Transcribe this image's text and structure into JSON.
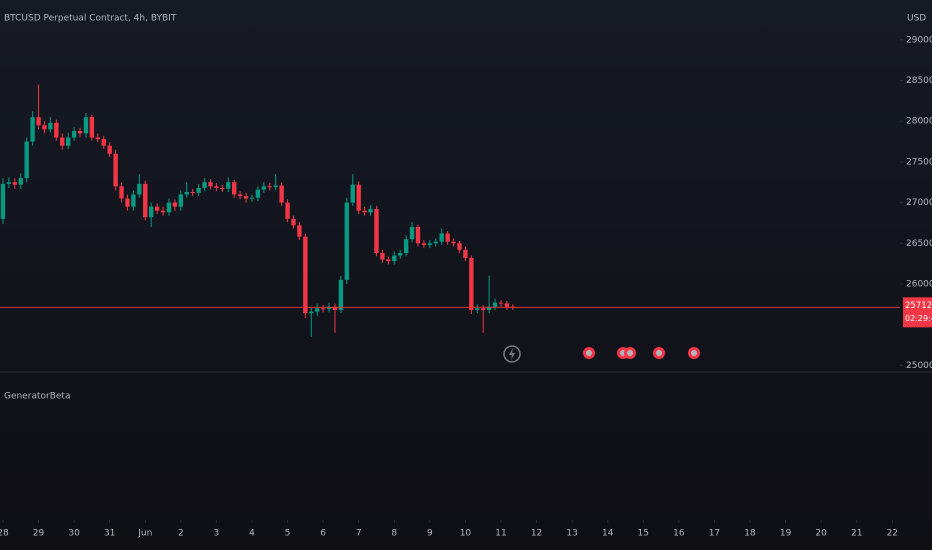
{
  "chart_data": {
    "type": "candlestick",
    "title": "BTCUSD Perpetual Contract, 4h, BYBIT",
    "currency": "USD",
    "indicator": "GeneratorBeta",
    "up_color": "#089981",
    "down_color": "#f23645",
    "last_price": 25712.5,
    "countdown": "02:29:46",
    "x": [
      0,
      1,
      2,
      3,
      4,
      5,
      6,
      7,
      8,
      9,
      10,
      11,
      12,
      13,
      14,
      15,
      16,
      17,
      18,
      19,
      20,
      21,
      22,
      23,
      24,
      25,
      26,
      27,
      28,
      29,
      30,
      31,
      32,
      33,
      34,
      35,
      36,
      37,
      38,
      39,
      40,
      41,
      42,
      43,
      44,
      45,
      46,
      47,
      48,
      49,
      50,
      51,
      52,
      53,
      54,
      55,
      56,
      57,
      58,
      59,
      60,
      61,
      62,
      63,
      64,
      65,
      66,
      67,
      68,
      69,
      70,
      71,
      72,
      73,
      74,
      75,
      76,
      77,
      78,
      79,
      80,
      81,
      82,
      83,
      84,
      85,
      86
    ],
    "open": [
      26800,
      27230,
      27250,
      27220,
      27300,
      27750,
      28050,
      27950,
      27900,
      27980,
      27800,
      27700,
      27800,
      27880,
      27850,
      28050,
      27800,
      27780,
      27700,
      27600,
      27200,
      27050,
      26950,
      27100,
      27230,
      26820,
      26950,
      26900,
      26880,
      27000,
      26950,
      27100,
      27130,
      27120,
      27180,
      27250,
      27200,
      27180,
      27170,
      27250,
      27100,
      27080,
      27050,
      27060,
      27160,
      27200,
      27190,
      27210,
      27000,
      26800,
      26720,
      26580,
      25640,
      25660,
      25700,
      25690,
      25720,
      25680,
      26050,
      27000,
      27220,
      26900,
      26880,
      26920,
      26380,
      26300,
      26280,
      26350,
      26380,
      26550,
      26700,
      26500,
      26480,
      26500,
      26520,
      26620,
      26520,
      26500,
      26420,
      26320,
      25680,
      25700,
      25680,
      25720,
      25770,
      25760,
      25720
    ],
    "high": [
      27300,
      27310,
      27300,
      27360,
      27800,
      28120,
      28450,
      28000,
      28050,
      28020,
      27850,
      27860,
      27930,
      27920,
      28100,
      28080,
      27850,
      27820,
      27740,
      27650,
      27250,
      27100,
      27150,
      27350,
      27270,
      27000,
      26990,
      26950,
      27050,
      27040,
      27150,
      27250,
      27170,
      27230,
      27300,
      27290,
      27240,
      27220,
      27310,
      27280,
      27140,
      27120,
      27100,
      27200,
      27250,
      27240,
      27350,
      27250,
      27040,
      26840,
      26760,
      26620,
      25720,
      25760,
      25740,
      25770,
      25760,
      26100,
      27060,
      27350,
      27260,
      26950,
      26970,
      26960,
      26420,
      26340,
      26400,
      26420,
      26600,
      26760,
      26730,
      26540,
      26540,
      26560,
      26680,
      26650,
      26560,
      26530,
      26460,
      26350,
      25750,
      25740,
      26100,
      25820,
      25800,
      25790,
      25750
    ],
    "low": [
      26740,
      27180,
      27170,
      27170,
      27250,
      27700,
      27900,
      27850,
      27860,
      27760,
      27650,
      27660,
      27760,
      27800,
      27800,
      27760,
      27740,
      27660,
      27560,
      27150,
      27000,
      26900,
      26900,
      27060,
      26780,
      26700,
      26860,
      26840,
      26840,
      26900,
      26900,
      27060,
      27080,
      27080,
      27140,
      27160,
      27140,
      27130,
      27130,
      27060,
      27040,
      27000,
      27010,
      27020,
      27120,
      27150,
      27150,
      26960,
      26760,
      26680,
      26540,
      25580,
      25350,
      25610,
      25650,
      25650,
      25400,
      25640,
      26000,
      26960,
      26860,
      26840,
      26840,
      26340,
      26260,
      26240,
      26240,
      26310,
      26340,
      26510,
      26460,
      26440,
      26440,
      26460,
      26480,
      26480,
      26460,
      26380,
      26280,
      25630,
      25640,
      25400,
      25640,
      25680,
      25720,
      25680,
      25680
    ],
    "close": [
      27230,
      27250,
      27220,
      27300,
      27750,
      28050,
      27950,
      27900,
      27980,
      27800,
      27700,
      27800,
      27880,
      27850,
      28050,
      27800,
      27780,
      27700,
      27600,
      27200,
      27050,
      26950,
      27100,
      27230,
      26820,
      26950,
      26900,
      26880,
      27000,
      26950,
      27100,
      27130,
      27120,
      27180,
      27250,
      27200,
      27180,
      27170,
      27250,
      27100,
      27080,
      27050,
      27060,
      27160,
      27200,
      27190,
      27210,
      27000,
      26800,
      26720,
      26580,
      25640,
      25660,
      25700,
      25690,
      25720,
      25680,
      26050,
      27000,
      27220,
      26900,
      26880,
      26920,
      26380,
      26300,
      26280,
      26350,
      26380,
      26550,
      26700,
      26500,
      26480,
      26500,
      26520,
      26620,
      26520,
      26500,
      26420,
      26320,
      25680,
      25700,
      25680,
      25720,
      25770,
      25760,
      25720,
      25712.5
    ],
    "ylim": [
      24930,
      29490
    ],
    "yticks": [
      {
        "value": 25000,
        "label": "25000.0"
      },
      {
        "value": 26000,
        "label": "26000.0"
      },
      {
        "value": 26500,
        "label": "26500.0"
      },
      {
        "value": 27000,
        "label": "27000.0"
      },
      {
        "value": 27500,
        "label": "27500.0"
      },
      {
        "value": 28000,
        "label": "28000.0"
      },
      {
        "value": 28500,
        "label": "28500.0"
      },
      {
        "value": 29000,
        "label": "29000.0"
      }
    ],
    "xlim": [
      -0.5,
      151.3
    ],
    "xticks": [
      {
        "value": 0,
        "label": "28"
      },
      {
        "value": 6,
        "label": "29"
      },
      {
        "value": 12,
        "label": "30"
      },
      {
        "value": 18,
        "label": "31"
      },
      {
        "value": 24,
        "label": "Jun"
      },
      {
        "value": 30,
        "label": "2"
      },
      {
        "value": 36,
        "label": "3"
      },
      {
        "value": 42,
        "label": "4"
      },
      {
        "value": 48,
        "label": "5"
      },
      {
        "value": 54,
        "label": "6"
      },
      {
        "value": 60,
        "label": "7"
      },
      {
        "value": 66,
        "label": "8"
      },
      {
        "value": 72,
        "label": "9"
      },
      {
        "value": 78,
        "label": "10"
      },
      {
        "value": 84,
        "label": "11"
      },
      {
        "value": 90,
        "label": "12"
      },
      {
        "value": 96,
        "label": "13"
      },
      {
        "value": 102,
        "label": "14"
      },
      {
        "value": 108,
        "label": "15"
      },
      {
        "value": 114,
        "label": "16"
      },
      {
        "value": 120,
        "label": "17"
      },
      {
        "value": 126,
        "label": "18"
      },
      {
        "value": 132,
        "label": "19"
      },
      {
        "value": 138,
        "label": "20"
      },
      {
        "value": 144,
        "label": "21"
      },
      {
        "value": 150,
        "label": "22"
      }
    ]
  }
}
